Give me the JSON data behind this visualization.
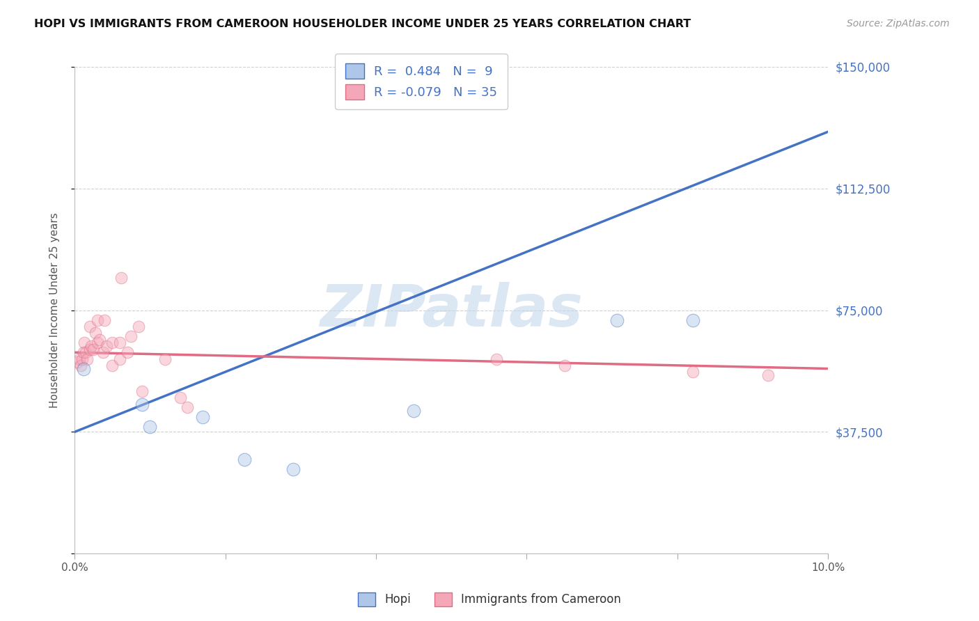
{
  "title": "HOPI VS IMMIGRANTS FROM CAMEROON HOUSEHOLDER INCOME UNDER 25 YEARS CORRELATION CHART",
  "source": "Source: ZipAtlas.com",
  "ylabel": "Householder Income Under 25 years",
  "xlim": [
    0.0,
    0.1
  ],
  "ylim": [
    0,
    150000
  ],
  "yticks": [
    0,
    37500,
    75000,
    112500,
    150000
  ],
  "ytick_labels": [
    "",
    "$37,500",
    "$75,000",
    "$112,500",
    "$150,000"
  ],
  "xticks": [
    0.0,
    0.02,
    0.04,
    0.06,
    0.08,
    0.1
  ],
  "xtick_labels": [
    "0.0%",
    "",
    "",
    "",
    "",
    "10.0%"
  ],
  "hopi_color": "#aec6e8",
  "cameroon_color": "#f4a7b9",
  "hopi_line_color": "#4472c4",
  "cameroon_line_color": "#e06c84",
  "hopi_R": 0.484,
  "hopi_N": 9,
  "cameroon_R": -0.079,
  "cameroon_N": 35,
  "hopi_x": [
    0.0012,
    0.009,
    0.01,
    0.017,
    0.0225,
    0.029,
    0.045,
    0.072,
    0.082
  ],
  "hopi_y": [
    57000,
    46000,
    39000,
    42000,
    29000,
    26000,
    44000,
    72000,
    72000
  ],
  "cameroon_x": [
    0.0004,
    0.0006,
    0.0008,
    0.001,
    0.0012,
    0.0013,
    0.0015,
    0.0017,
    0.002,
    0.002,
    0.0022,
    0.0025,
    0.0028,
    0.003,
    0.003,
    0.0033,
    0.0038,
    0.004,
    0.0042,
    0.005,
    0.005,
    0.006,
    0.006,
    0.0062,
    0.007,
    0.0075,
    0.0085,
    0.009,
    0.012,
    0.014,
    0.015,
    0.056,
    0.065,
    0.082,
    0.092
  ],
  "cameroon_y": [
    59000,
    60000,
    58000,
    60000,
    62000,
    65000,
    62000,
    60000,
    70000,
    63000,
    64000,
    63000,
    68000,
    65000,
    72000,
    66000,
    62000,
    72000,
    64000,
    65000,
    58000,
    65000,
    60000,
    85000,
    62000,
    67000,
    70000,
    50000,
    60000,
    48000,
    45000,
    60000,
    58000,
    56000,
    55000
  ],
  "watermark": "ZIPatlas",
  "background_color": "#ffffff",
  "grid_color": "#d0d0d0",
  "title_color": "#111111",
  "axis_color": "#555555",
  "right_tick_color": "#4472c4",
  "marker_size": 120,
  "marker_alpha": 0.45,
  "legend_hopi_label": "Hopi",
  "legend_cameroon_label": "Immigrants from Cameroon"
}
